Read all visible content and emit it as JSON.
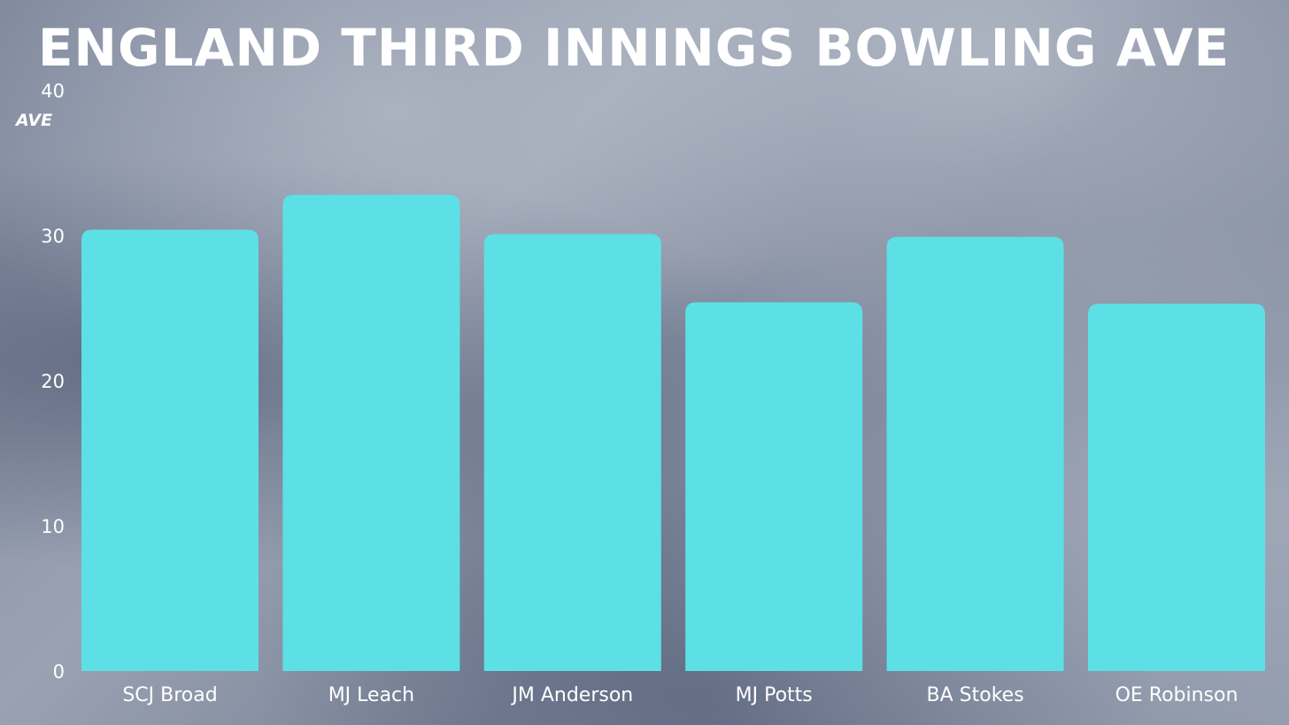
{
  "chart_data": {
    "type": "bar",
    "title": "ENGLAND THIRD INNINGS BOWLING AVE",
    "ylabel": "AVE",
    "xlabel": "",
    "categories": [
      "SCJ Broad",
      "MJ Leach",
      "JM Anderson",
      "MJ Potts",
      "BA Stokes",
      "OE Robinson"
    ],
    "values": [
      30.4,
      32.8,
      30.1,
      25.4,
      29.9,
      25.3
    ],
    "ylim": [
      0,
      40
    ],
    "yticks": [
      0,
      10,
      20,
      30,
      40
    ],
    "grid": false,
    "legend": "none",
    "bar_color": "#5ce0e6",
    "text_color": "#ffffff"
  }
}
